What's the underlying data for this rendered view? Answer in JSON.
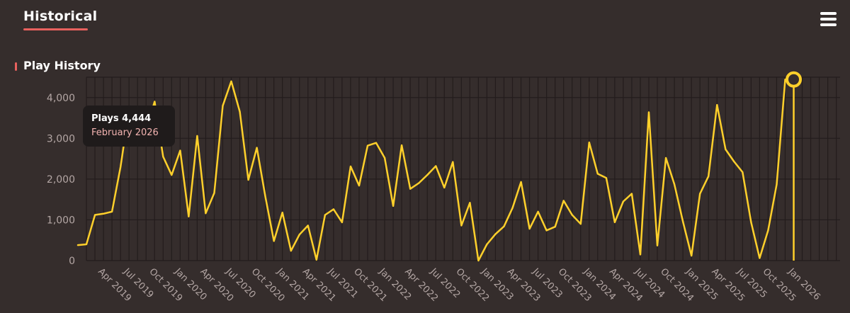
{
  "header": {
    "active_tab": "Historical",
    "menu_icon": "hamburger-menu-icon"
  },
  "section": {
    "title": "Play History"
  },
  "tooltip": {
    "label": "Plays",
    "value": "4,444",
    "date": "February 2026"
  },
  "colors": {
    "background": "#352d2c",
    "accent": "#e8615e",
    "line": "#ffd02b",
    "grid": "#231c1c",
    "tick_text": "#b3a6a4",
    "tooltip_bg": "#1f1b1b",
    "tooltip_date": "#f2b3b0"
  },
  "chart_data": {
    "type": "line",
    "title": "",
    "xlabel": "",
    "ylabel": "",
    "ylim": [
      0,
      4500
    ],
    "yticks": [
      0,
      1000,
      2000,
      3000,
      4000
    ],
    "ytick_labels": [
      "0",
      "1,000",
      "2,000",
      "3,000",
      "4,000"
    ],
    "xtick_labels": [
      "Apr 2019",
      "Jul 2019",
      "Oct 2019",
      "Jan 2020",
      "Apr 2020",
      "Jul 2020",
      "Oct 2020",
      "Jan 2021",
      "Apr 2021",
      "Jul 2021",
      "Oct 2021",
      "Jan 2022",
      "Apr 2022",
      "Jul 2022",
      "Oct 2022",
      "Jan 2023",
      "Apr 2023",
      "Jul 2023",
      "Oct 2023",
      "Jan 2024",
      "Apr 2024",
      "Jul 2024",
      "Oct 2024",
      "Jan 2025",
      "Apr 2025",
      "Jul 2025",
      "Oct 2025",
      "Jan 2026"
    ],
    "grid": true,
    "highlight": {
      "x": "2026-02",
      "y": 4444
    },
    "series": [
      {
        "x": [
          "2019-02",
          "2019-03",
          "2019-04",
          "2019-05",
          "2019-06",
          "2019-07",
          "2019-08",
          "2019-09",
          "2019-10",
          "2019-11",
          "2019-12",
          "2020-01",
          "2020-02",
          "2020-03",
          "2020-04",
          "2020-05",
          "2020-06",
          "2020-07",
          "2020-08",
          "2020-09",
          "2020-10",
          "2020-11",
          "2020-12",
          "2021-01",
          "2021-02",
          "2021-03",
          "2021-04",
          "2021-05",
          "2021-06",
          "2021-07",
          "2021-08",
          "2021-09",
          "2021-10",
          "2021-11",
          "2021-12",
          "2022-01",
          "2022-02",
          "2022-03",
          "2022-04",
          "2022-05",
          "2022-06",
          "2022-07",
          "2022-08",
          "2022-09",
          "2022-10",
          "2022-11",
          "2022-12",
          "2023-01",
          "2023-02",
          "2023-03",
          "2023-04",
          "2023-05",
          "2023-06",
          "2023-07",
          "2023-08",
          "2023-09",
          "2023-10",
          "2023-11",
          "2023-12",
          "2024-01",
          "2024-02",
          "2024-03",
          "2024-04",
          "2024-05",
          "2024-06",
          "2024-07",
          "2024-08",
          "2024-09",
          "2024-10",
          "2024-11",
          "2024-12",
          "2025-01",
          "2025-02",
          "2025-03",
          "2025-04",
          "2025-05",
          "2025-06",
          "2025-07",
          "2025-08",
          "2025-09",
          "2025-10",
          "2025-11",
          "2025-12",
          "2026-01",
          "2026-02"
        ],
        "values": [
          380,
          400,
          1120,
          1150,
          1200,
          2300,
          3700,
          3100,
          3200,
          3900,
          2550,
          2100,
          2700,
          1080,
          3060,
          1160,
          1660,
          3800,
          4400,
          3650,
          1980,
          2770,
          1560,
          480,
          1180,
          240,
          640,
          860,
          20,
          1120,
          1260,
          940,
          2310,
          1840,
          2820,
          2890,
          2520,
          1340,
          2830,
          1760,
          1900,
          2100,
          2320,
          1790,
          2420,
          860,
          1420,
          0,
          400,
          650,
          840,
          1290,
          1930,
          780,
          1200,
          740,
          830,
          1470,
          1120,
          900,
          2900,
          2130,
          2030,
          940,
          1450,
          1640,
          150,
          3640,
          370,
          2520,
          1870,
          960,
          120,
          1640,
          2070,
          3820,
          2730,
          2430,
          2170,
          940,
          60,
          740,
          1870,
          4444,
          4444
        ]
      }
    ]
  }
}
